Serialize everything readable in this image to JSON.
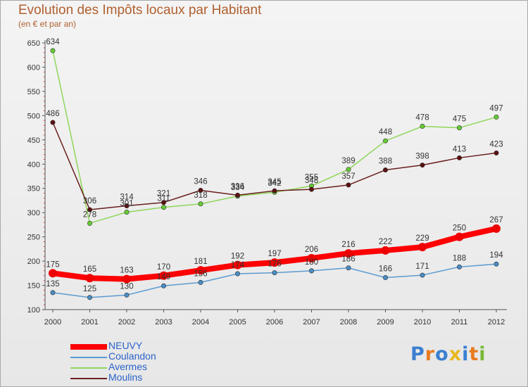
{
  "chart_data": {
    "type": "line",
    "title": "Evolution des Impôts locaux par Habitant",
    "subtitle": "(en € et par an)",
    "xlabel": "",
    "ylabel": "",
    "categories": [
      "2000",
      "2001",
      "2002",
      "2003",
      "2004",
      "2005",
      "2006",
      "2007",
      "2008",
      "2009",
      "2010",
      "2011",
      "2012"
    ],
    "ylim": [
      100,
      650
    ],
    "yticks": [
      100,
      150,
      200,
      250,
      300,
      350,
      400,
      450,
      500,
      550,
      600,
      650
    ],
    "grid": false,
    "legend_position": "bottom-left",
    "series": [
      {
        "name": "Avermes",
        "color": "#8fd65a",
        "marker": "#66cc33",
        "width": 1.5,
        "values": [
          634,
          278,
          301,
          311,
          318,
          334,
          342,
          355,
          389,
          448,
          478,
          475,
          497
        ],
        "labels": [
          "634",
          "278",
          "301",
          "311",
          "318",
          "334",
          "342",
          "355",
          "389",
          "448",
          "478",
          "475",
          "497"
        ]
      },
      {
        "name": "Moulins",
        "color": "#6b1f1f",
        "marker": "#5c1010",
        "width": 1.5,
        "values": [
          486,
          306,
          314,
          321,
          346,
          336,
          345,
          348,
          357,
          388,
          398,
          413,
          423
        ],
        "labels": [
          "486",
          "306",
          "314",
          "321",
          "346",
          "336",
          "345",
          "348",
          "357",
          "388",
          "398",
          "413",
          "423"
        ]
      },
      {
        "name": "Coulandon",
        "color": "#5b9bd0",
        "marker": "#4a8cc4",
        "width": 1.5,
        "values": [
          135,
          125,
          130,
          149,
          156,
          174,
          176,
          180,
          186,
          166,
          171,
          188,
          194
        ],
        "labels": [
          "135",
          "125",
          "130",
          "149",
          "156",
          "174",
          "176",
          "180",
          "186",
          "166",
          "171",
          "188",
          "194"
        ]
      },
      {
        "name": "NEUVY",
        "color": "#ff0000",
        "marker": "#ee0000",
        "width": 8,
        "values": [
          175,
          165,
          163,
          170,
          181,
          192,
          197,
          206,
          216,
          222,
          229,
          250,
          267
        ],
        "labels": [
          "175",
          "165",
          "163",
          "170",
          "181",
          "192",
          "197",
          "206",
          "216",
          "222",
          "229",
          "250",
          "267"
        ]
      }
    ],
    "legend": [
      {
        "name": "NEUVY",
        "color": "#ff0000",
        "thick": true
      },
      {
        "name": "Coulandon",
        "color": "#5b9bd0",
        "thick": false
      },
      {
        "name": "Avermes",
        "color": "#8fd65a",
        "thick": false
      },
      {
        "name": "Moulins",
        "color": "#6b1f1f",
        "thick": false
      }
    ]
  },
  "logo": {
    "letters": [
      "P",
      "r",
      "o",
      "x",
      "i",
      "t",
      "i"
    ],
    "colors": [
      "#3a7fd0",
      "#e87a20",
      "#3a7fd0",
      "#e8b820",
      "#3a7fd0",
      "#e87a20",
      "#7ab83a"
    ]
  }
}
